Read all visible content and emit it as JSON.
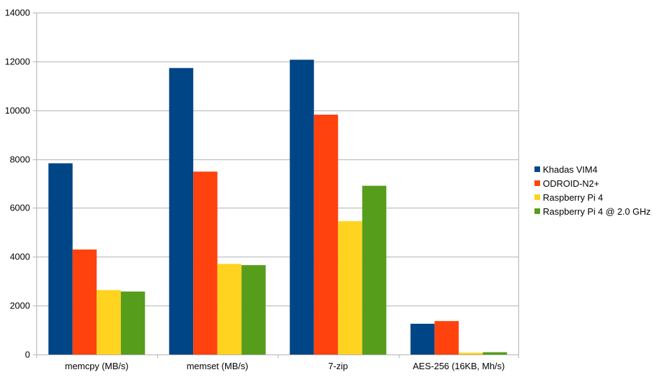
{
  "chart_data": {
    "type": "bar",
    "categories": [
      "memcpy (MB/s)",
      "memset (MB/s)",
      "7-zip",
      "AES-256 (16KB, Mh/s)"
    ],
    "series": [
      {
        "name": "Khadas VIM4",
        "color": "#004586",
        "values": [
          7830,
          11730,
          12070,
          1260
        ]
      },
      {
        "name": "ODROID-N2+",
        "color": "#ff420e",
        "values": [
          4300,
          7490,
          9820,
          1370
        ]
      },
      {
        "name": "Raspberry Pi 4",
        "color": "#ffd320",
        "values": [
          2640,
          3710,
          5460,
          75
        ]
      },
      {
        "name": "Raspberry Pi 4 @ 2.0 GHz",
        "color": "#579d1c",
        "values": [
          2580,
          3660,
          6910,
          95
        ]
      }
    ],
    "ylim": [
      0,
      14000
    ],
    "yticks": [
      "0",
      "2000",
      "4000",
      "6000",
      "8000",
      "10000",
      "12000",
      "14000"
    ],
    "grid": true,
    "legend_position": "right",
    "gridline_color": "#b3b3b3"
  }
}
